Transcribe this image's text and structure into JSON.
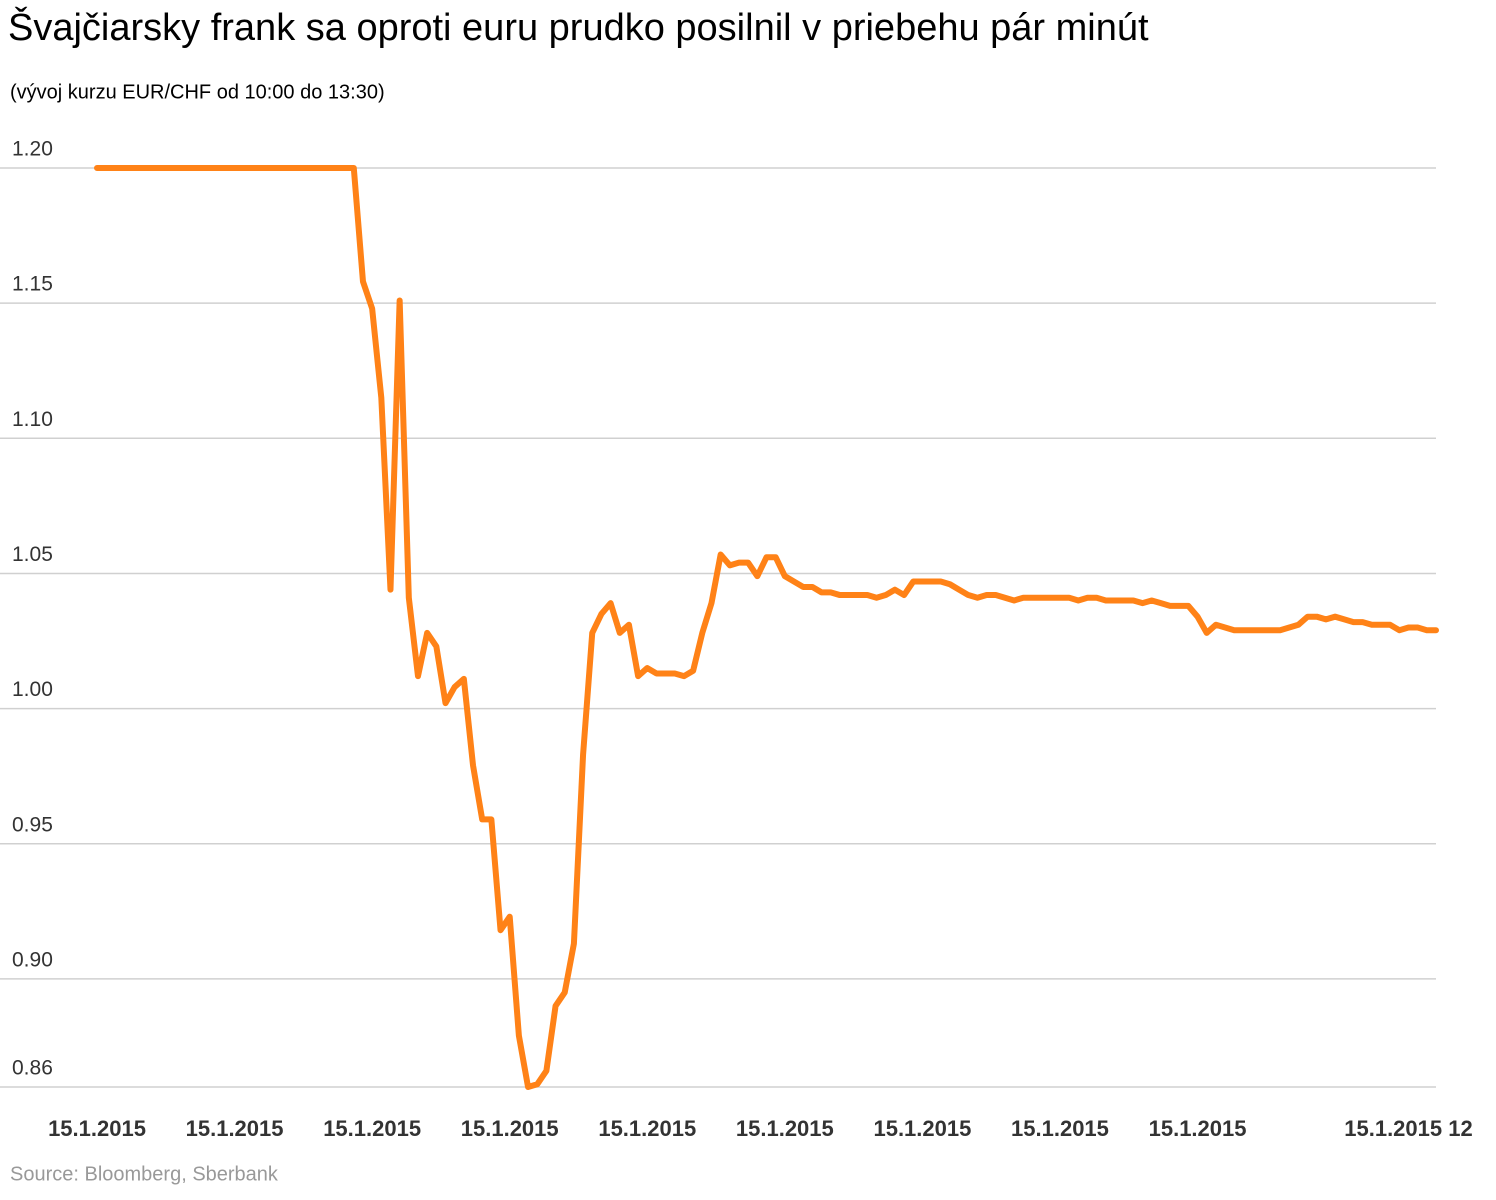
{
  "chart_data": {
    "type": "line",
    "title": "Švajčiarsky frank sa oproti euru prudko posilnil v priebehu pár minút",
    "subtitle": "(vývoj kurzu EUR/CHF od 10:00 do 13:30)",
    "source": "Source: Bloomberg, Sberbank",
    "categories": [
      "15.1.2015",
      null,
      null,
      null,
      null,
      null,
      null,
      null,
      null,
      null,
      null,
      null,
      null,
      null,
      null,
      "15.1.2015",
      null,
      null,
      null,
      null,
      null,
      null,
      null,
      null,
      null,
      null,
      null,
      null,
      null,
      null,
      "15.1.2015",
      null,
      null,
      null,
      null,
      null,
      null,
      null,
      null,
      null,
      null,
      null,
      null,
      null,
      null,
      "15.1.2015",
      null,
      null,
      null,
      null,
      null,
      null,
      null,
      null,
      null,
      null,
      null,
      null,
      null,
      null,
      "15.1.2015",
      null,
      null,
      null,
      null,
      null,
      null,
      null,
      null,
      null,
      null,
      null,
      null,
      null,
      null,
      "15.1.2015",
      null,
      null,
      null,
      null,
      null,
      null,
      null,
      null,
      null,
      null,
      null,
      null,
      null,
      null,
      "15.1.2015",
      null,
      null,
      null,
      null,
      null,
      null,
      null,
      null,
      null,
      null,
      null,
      null,
      null,
      null,
      "15.1.2015",
      null,
      null,
      null,
      null,
      null,
      null,
      null,
      null,
      null,
      null,
      null,
      null,
      null,
      null,
      "15.1.2015",
      null,
      null,
      null,
      null,
      null,
      null,
      null,
      null,
      null,
      null,
      null,
      null,
      null,
      null,
      null,
      null,
      null,
      null,
      null,
      null,
      null,
      null,
      "15.1.2015 12",
      null,
      null,
      null
    ],
    "values": [
      1.2,
      1.2,
      1.2,
      1.2,
      1.2,
      1.2,
      1.2,
      1.2,
      1.2,
      1.2,
      1.2,
      1.2,
      1.2,
      1.2,
      1.2,
      1.2,
      1.2,
      1.2,
      1.2,
      1.2,
      1.2,
      1.2,
      1.2,
      1.2,
      1.2,
      1.2,
      1.2,
      1.2,
      1.2,
      1.158,
      1.148,
      1.115,
      1.044,
      1.151,
      1.041,
      1.012,
      1.028,
      1.023,
      1.002,
      1.008,
      1.011,
      0.979,
      0.959,
      0.959,
      0.918,
      0.923,
      0.879,
      0.86,
      0.861,
      0.866,
      0.89,
      0.895,
      0.913,
      0.983,
      1.028,
      1.035,
      1.039,
      1.028,
      1.031,
      1.012,
      1.015,
      1.013,
      1.013,
      1.013,
      1.012,
      1.014,
      1.028,
      1.039,
      1.057,
      1.053,
      1.054,
      1.054,
      1.049,
      1.056,
      1.056,
      1.049,
      1.047,
      1.045,
      1.045,
      1.043,
      1.043,
      1.042,
      1.042,
      1.042,
      1.042,
      1.041,
      1.042,
      1.044,
      1.042,
      1.047,
      1.047,
      1.047,
      1.047,
      1.046,
      1.044,
      1.042,
      1.041,
      1.042,
      1.042,
      1.041,
      1.04,
      1.041,
      1.041,
      1.041,
      1.041,
      1.041,
      1.041,
      1.04,
      1.041,
      1.041,
      1.04,
      1.04,
      1.04,
      1.04,
      1.039,
      1.04,
      1.039,
      1.038,
      1.038,
      1.038,
      1.034,
      1.028,
      1.031,
      1.03,
      1.029,
      1.029,
      1.029,
      1.029,
      1.029,
      1.029,
      1.03,
      1.031,
      1.034,
      1.034,
      1.033,
      1.034,
      1.033,
      1.032,
      1.032,
      1.031,
      1.031,
      1.031,
      1.029,
      1.03,
      1.03,
      1.029,
      1.029
    ],
    "color": "#ff8217",
    "ylim": [
      0.86,
      1.2
    ],
    "yticks": [
      0.86,
      {
        "value": 0.9,
        "label": "0.90"
      },
      0.95,
      {
        "value": 1.0,
        "label": "1.00"
      },
      1.05,
      {
        "value": 1.1,
        "label": "1.10"
      },
      1.15,
      {
        "value": 1.2,
        "label": "1.20"
      }
    ],
    "grid": true
  }
}
